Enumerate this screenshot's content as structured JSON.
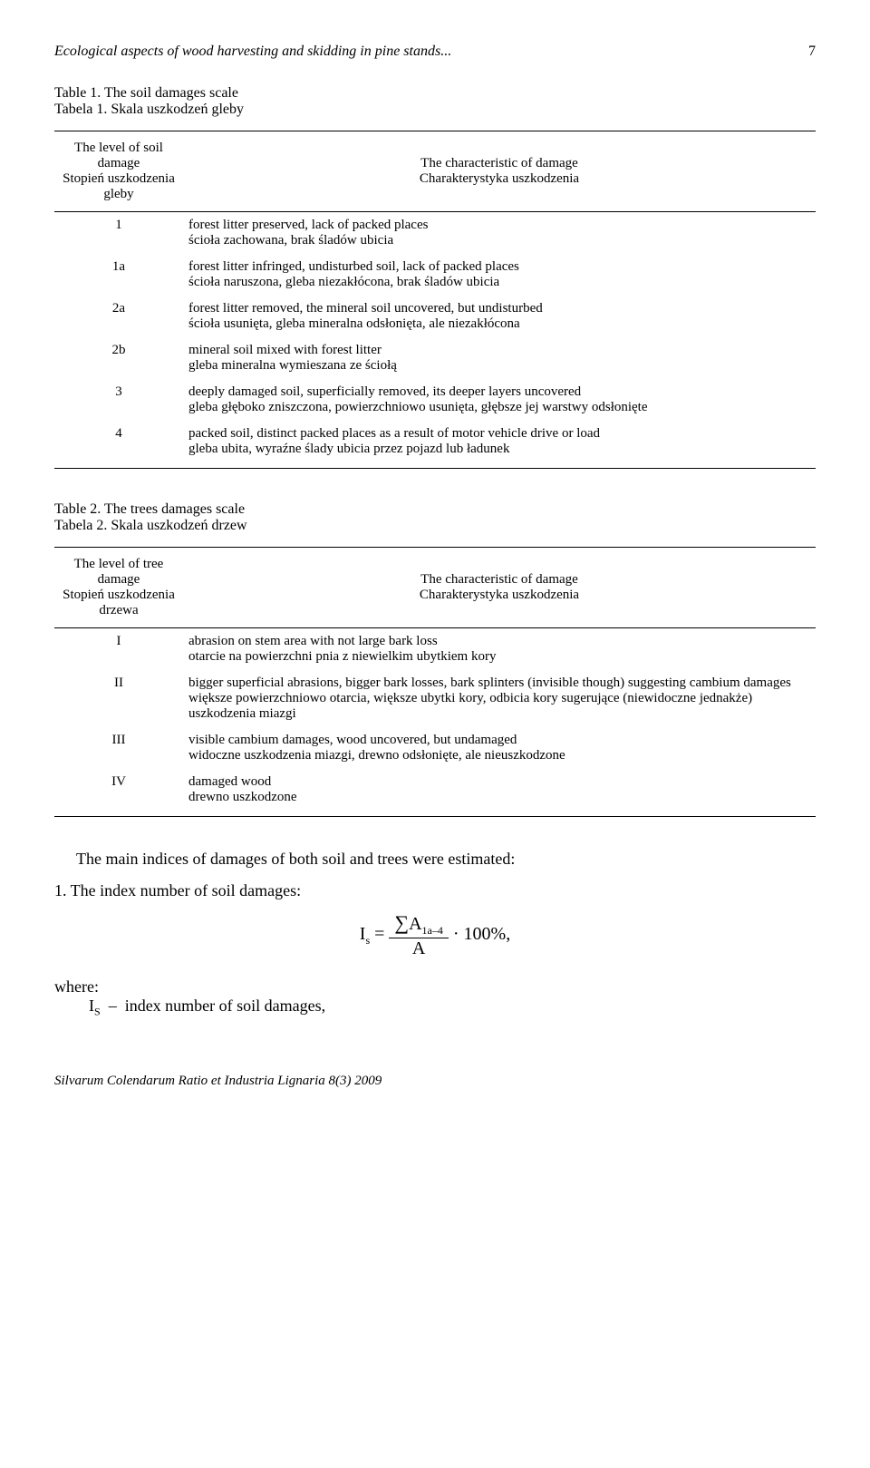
{
  "header": {
    "running_title": "Ecological aspects of wood harvesting and skidding in pine stands...",
    "page_number": "7"
  },
  "table1": {
    "caption_en": "Table 1. The soil damages scale",
    "caption_pl": "Tabela 1. Skala uszkodzeń gleby",
    "col1_lines": [
      "The level of soil",
      "damage",
      "Stopień uszkodzenia",
      "gleby"
    ],
    "col2_lines": [
      "The characteristic of damage",
      "Charakterystyka uszkodzenia"
    ],
    "rows": [
      {
        "level": "1",
        "en": "forest litter preserved, lack of packed places",
        "pl": "ścioła zachowana, brak śladów ubicia"
      },
      {
        "level": "1a",
        "en": "forest litter infringed, undisturbed soil, lack of packed places",
        "pl": "ścioła naruszona, gleba niezakłócona, brak śladów ubicia"
      },
      {
        "level": "2a",
        "en": "forest litter removed, the mineral soil uncovered, but undisturbed",
        "pl": "ścioła usunięta, gleba mineralna odsłonięta, ale niezakłócona"
      },
      {
        "level": "2b",
        "en": "mineral soil mixed with forest litter",
        "pl": "gleba mineralna wymieszana ze ściołą"
      },
      {
        "level": "3",
        "en": "deeply damaged soil, superficially removed, its deeper layers uncovered",
        "pl": "gleba głęboko zniszczona, powierzchniowo usunięta, głębsze jej warstwy odsłonięte"
      },
      {
        "level": "4",
        "en": "packed soil, distinct packed places as a result of motor vehicle drive or load",
        "pl": "gleba ubita, wyraźne ślady ubicia przez pojazd lub ładunek"
      }
    ]
  },
  "table2": {
    "caption_en": "Table 2. The trees damages scale",
    "caption_pl": "Tabela 2. Skala uszkodzeń drzew",
    "col1_lines": [
      "The level of tree",
      "damage",
      "Stopień uszkodzenia",
      "drzewa"
    ],
    "col2_lines": [
      "The characteristic of damage",
      "Charakterystyka uszkodzenia"
    ],
    "rows": [
      {
        "level": "I",
        "en": "abrasion on stem area with not large bark loss",
        "pl": "otarcie na powierzchni pnia z niewielkim ubytkiem kory"
      },
      {
        "level": "II",
        "en": "bigger superficial abrasions, bigger bark losses, bark splinters (invisible though) suggesting cambium damages",
        "pl": "większe powierzchniowo otarcia, większe ubytki kory, odbicia kory sugerujące (niewidoczne jednakże) uszkodzenia miazgi"
      },
      {
        "level": "III",
        "en": "visible cambium damages, wood uncovered, but undamaged",
        "pl": "widoczne uszkodzenia miazgi, drewno odsłonięte, ale nieuszkodzone"
      },
      {
        "level": "IV",
        "en": "damaged wood",
        "pl": "drewno uszkodzone"
      }
    ]
  },
  "body": {
    "main_sentence": "The main indices of damages of both soil and trees were estimated:",
    "item1": "1. The index number of soil damages:",
    "formula_lhs": "I",
    "formula_lhs_sub": "s",
    "formula_eq": " = ",
    "formula_num_sigma": "∑",
    "formula_num_A": "A",
    "formula_num_sub": "1a–4",
    "formula_den": "A",
    "formula_tail": " · 100%,",
    "where_label": "where:",
    "where_def": "I_S  –  index number of soil damages,"
  },
  "footer": {
    "journal": "Silvarum Colendarum Ratio et Industria Lignaria 8(3) 2009"
  }
}
